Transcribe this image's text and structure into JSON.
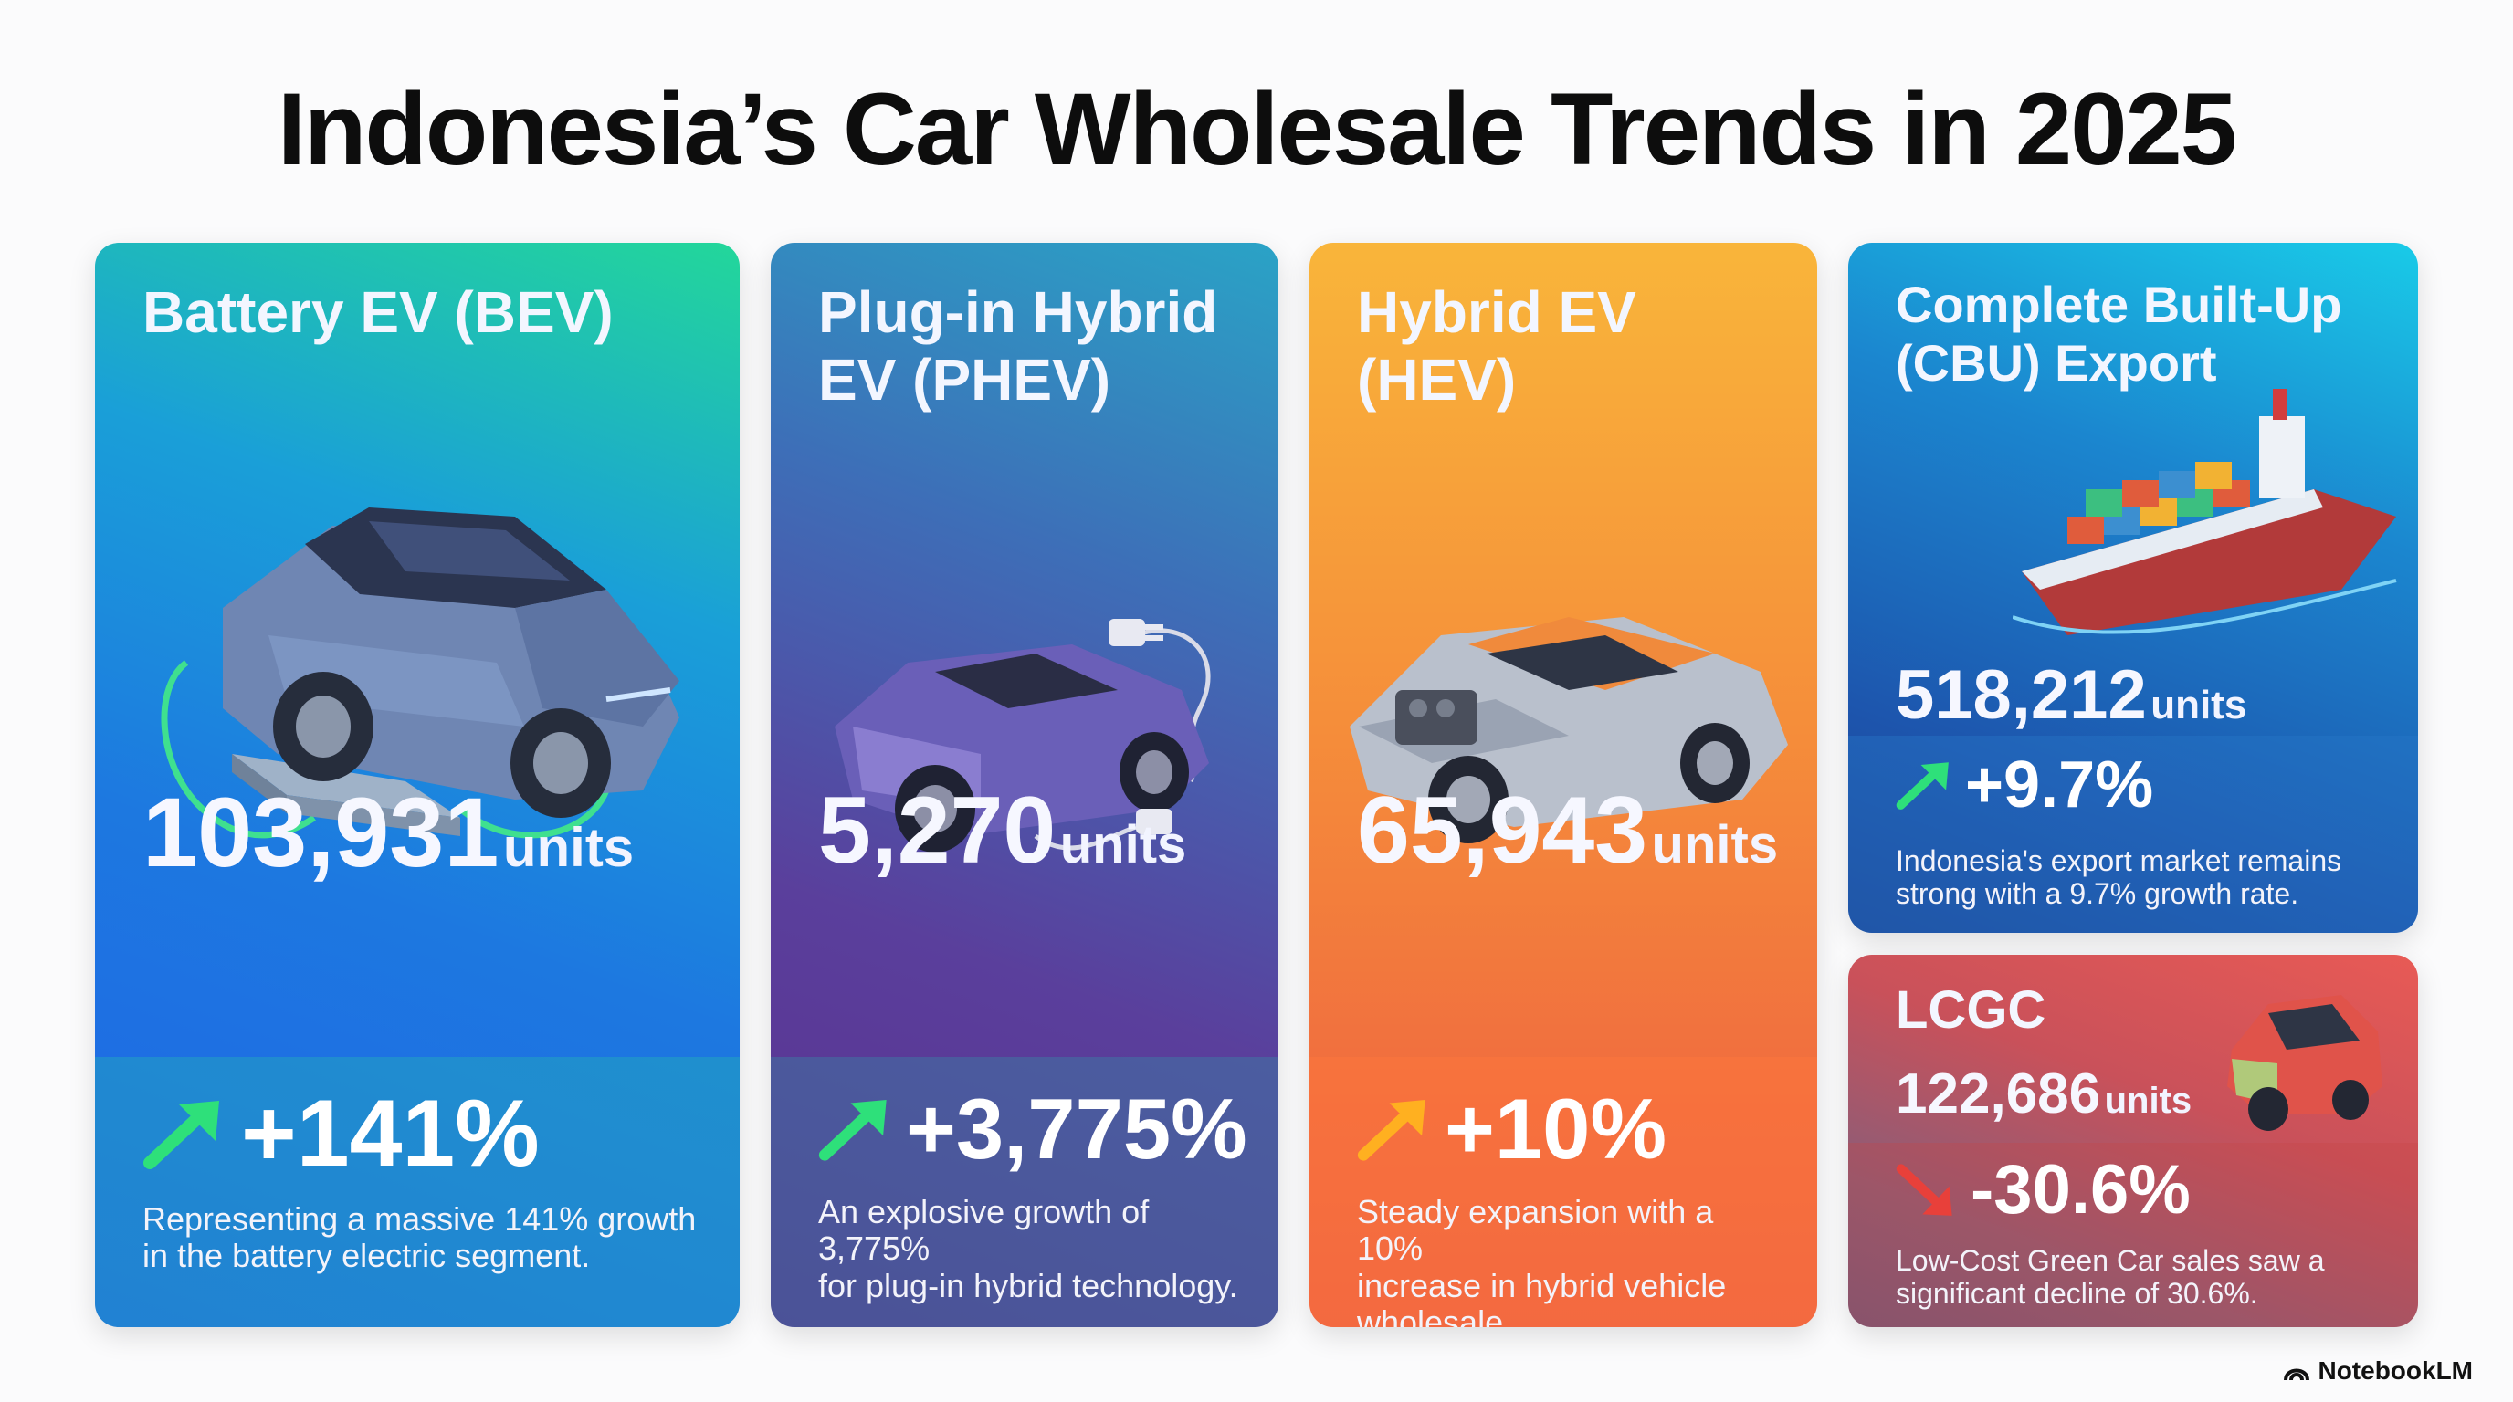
{
  "page": {
    "title": "Indonesia’s Car Wholesale Trends in 2025"
  },
  "cards": {
    "bev": {
      "title_line1": "Battery EV (BEV)",
      "units_value": "103,931",
      "units_label": "units",
      "growth": "+141%",
      "trend": "up",
      "desc_line1": "Representing a massive 141% growth",
      "desc_line2": "in the battery electric segment."
    },
    "phev": {
      "title_line1": "Plug-in Hybrid",
      "title_line2": "EV (PHEV)",
      "units_value": "5,270",
      "units_label": "units",
      "growth": "+3,775%",
      "trend": "up",
      "desc_line1": "An explosive growth of 3,775%",
      "desc_line2": "for plug-in hybrid technology."
    },
    "hev": {
      "title_line1": "Hybrid EV",
      "title_line2": "(HEV)",
      "units_value": "65,943",
      "units_label": "units",
      "growth": "+10%",
      "trend": "up",
      "desc_line1": "Steady expansion with a 10%",
      "desc_line2": "increase in hybrid vehicle",
      "desc_line3": "wholesale."
    },
    "cbu": {
      "title_line1": "Complete Built-Up",
      "title_line2": "(CBU) Export",
      "units_value": "518,212",
      "units_label": "units",
      "growth": "+9.7%",
      "trend": "up",
      "desc_line1": "Indonesia's export market remains",
      "desc_line2": "strong with a 9.7% growth rate."
    },
    "lcgc": {
      "title_line1": "LCGC",
      "units_value": "122,686",
      "units_label": "units",
      "growth": "-30.6%",
      "trend": "down",
      "desc_line1": "Low-Cost Green Car sales saw a",
      "desc_line2": "significant decline of 30.6%."
    }
  },
  "footer": {
    "brand": "NotebookLM",
    "icon": "notebooklm-logo-icon"
  },
  "colors": {
    "up_arrow": "#2ee07a",
    "up_arrow_orange": "#ffb020",
    "down_arrow": "#e8403a"
  }
}
